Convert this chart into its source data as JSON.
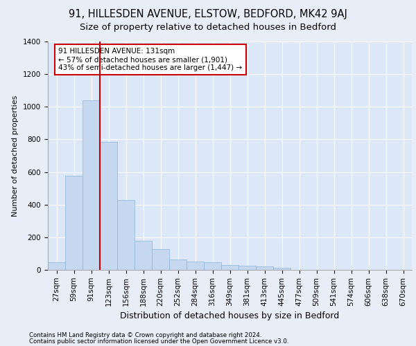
{
  "title1": "91, HILLESDEN AVENUE, ELSTOW, BEDFORD, MK42 9AJ",
  "title2": "Size of property relative to detached houses in Bedford",
  "xlabel": "Distribution of detached houses by size in Bedford",
  "ylabel": "Number of detached properties",
  "footer1": "Contains HM Land Registry data © Crown copyright and database right 2024.",
  "footer2": "Contains public sector information licensed under the Open Government Licence v3.0.",
  "bar_values": [
    45,
    575,
    1040,
    785,
    430,
    178,
    128,
    65,
    50,
    46,
    28,
    27,
    20,
    12,
    0,
    0,
    0,
    0,
    0,
    0,
    0
  ],
  "categories": [
    "27sqm",
    "59sqm",
    "91sqm",
    "123sqm",
    "156sqm",
    "188sqm",
    "220sqm",
    "252sqm",
    "284sqm",
    "316sqm",
    "349sqm",
    "381sqm",
    "413sqm",
    "445sqm",
    "477sqm",
    "509sqm",
    "541sqm",
    "574sqm",
    "606sqm",
    "638sqm",
    "670sqm"
  ],
  "bar_color": "#c5d8f0",
  "bar_edge_color": "#8ab4d8",
  "vline_color": "#cc0000",
  "annotation_text": "91 HILLESDEN AVENUE: 131sqm\n← 57% of detached houses are smaller (1,901)\n43% of semi-detached houses are larger (1,447) →",
  "annotation_box_color": "#ffffff",
  "annotation_box_edge": "#cc0000",
  "ylim": [
    0,
    1400
  ],
  "yticks": [
    0,
    200,
    400,
    600,
    800,
    1000,
    1200,
    1400
  ],
  "bg_color": "#e8eef7",
  "plot_bg": "#dce8f8",
  "title1_fontsize": 10.5,
  "title2_fontsize": 9.5,
  "xlabel_fontsize": 9,
  "ylabel_fontsize": 8,
  "tick_fontsize": 7.5,
  "footer_fontsize": 6.2
}
